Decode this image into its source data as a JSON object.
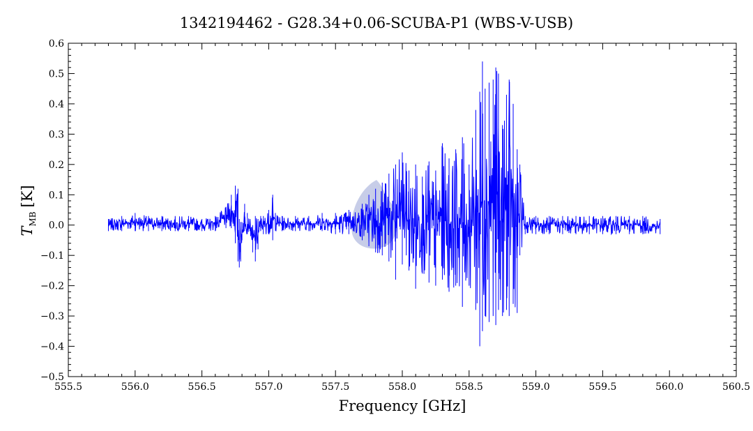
{
  "chart_data": {
    "type": "line",
    "title": "1342194462 - G28.34+0.06-SCUBA-P1 (WBS-V-USB)",
    "xlabel": "Frequency [GHz]",
    "ylabel_main": "T",
    "ylabel_sub": "MB",
    "ylabel_unit": "[K]",
    "xlim": [
      555.5,
      560.5
    ],
    "ylim": [
      -0.5,
      0.6
    ],
    "x_ticks": [
      "555.5",
      "556.0",
      "556.5",
      "557.0",
      "557.5",
      "558.0",
      "558.5",
      "559.0",
      "559.5",
      "560.0",
      "560.5"
    ],
    "y_ticks": [
      "−0.5",
      "−0.4",
      "−0.3",
      "−0.2",
      "−0.1",
      "0.0",
      "0.1",
      "0.2",
      "0.3",
      "0.4",
      "0.5",
      "0.6"
    ],
    "series_color": "#0000ff",
    "series": [
      {
        "x": [
          555.8,
          555.9,
          556.0,
          556.1,
          556.2,
          556.3,
          556.4,
          556.5,
          556.6,
          556.68,
          556.72,
          556.75,
          556.77,
          556.78,
          556.79,
          556.8,
          556.82,
          556.84,
          556.86,
          556.88,
          556.9,
          556.92,
          556.94,
          556.96,
          557.0,
          557.03,
          557.05,
          557.1,
          557.2,
          557.3,
          557.4,
          557.5,
          557.6,
          557.7,
          557.75,
          557.8,
          557.85,
          557.9,
          557.95,
          558.0,
          558.05,
          558.1,
          558.15,
          558.2,
          558.25,
          558.3,
          558.35,
          558.4,
          558.45,
          558.5,
          558.55,
          558.58,
          558.6,
          558.62,
          558.65,
          558.68,
          558.7,
          558.72,
          558.75,
          558.78,
          558.8,
          558.83,
          558.86,
          558.88,
          558.92,
          559.0,
          559.1,
          559.2,
          559.3,
          559.4,
          559.5,
          559.6,
          559.7,
          559.8,
          559.93
        ],
        "max": [
          0.02,
          0.03,
          0.04,
          0.03,
          0.03,
          0.03,
          0.03,
          0.02,
          0.03,
          0.06,
          0.1,
          0.13,
          0.12,
          0.02,
          0.01,
          0.01,
          0.07,
          0.04,
          0.02,
          0.0,
          0.03,
          0.02,
          0.03,
          0.03,
          0.05,
          0.1,
          0.04,
          0.03,
          0.03,
          0.03,
          0.04,
          0.04,
          0.05,
          0.07,
          0.1,
          0.12,
          0.14,
          0.17,
          0.2,
          0.24,
          0.18,
          0.2,
          0.16,
          0.21,
          0.18,
          0.27,
          0.22,
          0.25,
          0.29,
          0.2,
          0.38,
          0.44,
          0.54,
          0.45,
          0.47,
          0.48,
          0.52,
          0.5,
          0.33,
          0.43,
          0.48,
          0.4,
          0.25,
          0.2,
          0.03,
          0.03,
          0.03,
          0.03,
          0.03,
          0.03,
          0.03,
          0.03,
          0.03,
          0.03,
          0.02
        ],
        "min": [
          -0.02,
          -0.02,
          -0.02,
          -0.02,
          -0.02,
          -0.02,
          -0.02,
          -0.02,
          -0.02,
          -0.01,
          -0.01,
          -0.06,
          -0.12,
          -0.14,
          -0.12,
          -0.05,
          -0.02,
          -0.03,
          -0.02,
          -0.09,
          -0.12,
          -0.08,
          -0.02,
          -0.03,
          -0.03,
          -0.05,
          -0.02,
          -0.02,
          -0.02,
          -0.02,
          -0.02,
          -0.03,
          -0.03,
          -0.05,
          -0.07,
          -0.09,
          -0.1,
          -0.12,
          -0.18,
          -0.13,
          -0.15,
          -0.21,
          -0.16,
          -0.19,
          -0.2,
          -0.18,
          -0.22,
          -0.2,
          -0.27,
          -0.2,
          -0.28,
          -0.4,
          -0.35,
          -0.3,
          -0.32,
          -0.3,
          -0.33,
          -0.28,
          -0.3,
          -0.28,
          -0.3,
          -0.26,
          -0.29,
          -0.1,
          -0.03,
          -0.03,
          -0.03,
          -0.03,
          -0.03,
          -0.03,
          -0.03,
          -0.03,
          -0.03,
          -0.03,
          -0.03
        ]
      }
    ]
  }
}
